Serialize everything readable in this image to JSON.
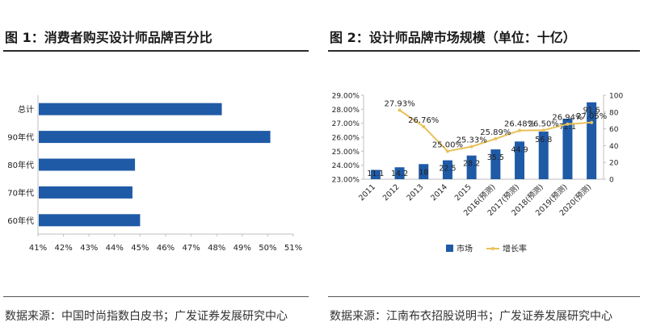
{
  "figures": {
    "left": {
      "title": "图 1：消费者购买设计师品牌百分比",
      "source": "数据来源：中国时尚指数白皮书；广发证券发展研究中心"
    },
    "right": {
      "title": "图 2：设计师品牌市场规模（单位：十亿）",
      "source": "数据来源：江南布衣招股说明书；广发证券发展研究中心"
    }
  },
  "colors": {
    "bar": "#1f5aa6",
    "line": "#e8c25a",
    "axis": "#bfbfbf",
    "text": "#222222"
  },
  "chart_data": [
    {
      "type": "bar",
      "orientation": "horizontal",
      "categories": [
        "总计",
        "90年代",
        "80年代",
        "70年代",
        "60年代"
      ],
      "values": [
        48.2,
        50.1,
        44.8,
        44.7,
        45.0
      ],
      "xlim": [
        41,
        51
      ],
      "xticks": [
        "41%",
        "42%",
        "43%",
        "44%",
        "45%",
        "46%",
        "47%",
        "48%",
        "49%",
        "50%",
        "51%"
      ],
      "title": "",
      "xlabel": "",
      "ylabel": ""
    },
    {
      "type": "bar+line",
      "categories": [
        "2011",
        "2012",
        "2013",
        "2014",
        "2015",
        "2016(预测)",
        "2017(预测)",
        "2018(预测)",
        "2019(预测)",
        "2020(预测)"
      ],
      "series": [
        {
          "name": "市场",
          "type": "bar",
          "axis": "right",
          "values": [
            11.1,
            14.2,
            18,
            22.5,
            28.2,
            35.5,
            44.9,
            56.8,
            72.1,
            91.6
          ],
          "labels": [
            "11.1",
            "14.2",
            "18",
            "22.5",
            "28.2",
            "35.5",
            "44.9",
            "56.8",
            "72.1",
            "91.6"
          ]
        },
        {
          "name": "增长率",
          "type": "line",
          "axis": "left",
          "x": [
            "2012",
            "2013",
            "2014",
            "2015",
            "2016(预测)",
            "2017(预测)",
            "2018(预测)",
            "2019(预测)",
            "2020(预测)"
          ],
          "values": [
            27.93,
            26.76,
            25.0,
            25.33,
            25.89,
            26.48,
            26.5,
            26.94,
            27.05
          ],
          "labels": [
            "27.93%",
            "26.76%",
            "25.00%",
            "25.33%",
            "25.89%",
            "26.48%",
            "26.50%",
            "26.94%",
            "27.05%"
          ]
        }
      ],
      "ylim_left": [
        23,
        29
      ],
      "yticks_left": [
        "23.00%",
        "24.00%",
        "25.00%",
        "26.00%",
        "27.00%",
        "28.00%",
        "29.00%"
      ],
      "ylim_right": [
        0,
        100
      ],
      "yticks_right": [
        "0",
        "20",
        "40",
        "60",
        "80",
        "100"
      ],
      "legend": "bottom",
      "title": ""
    }
  ]
}
